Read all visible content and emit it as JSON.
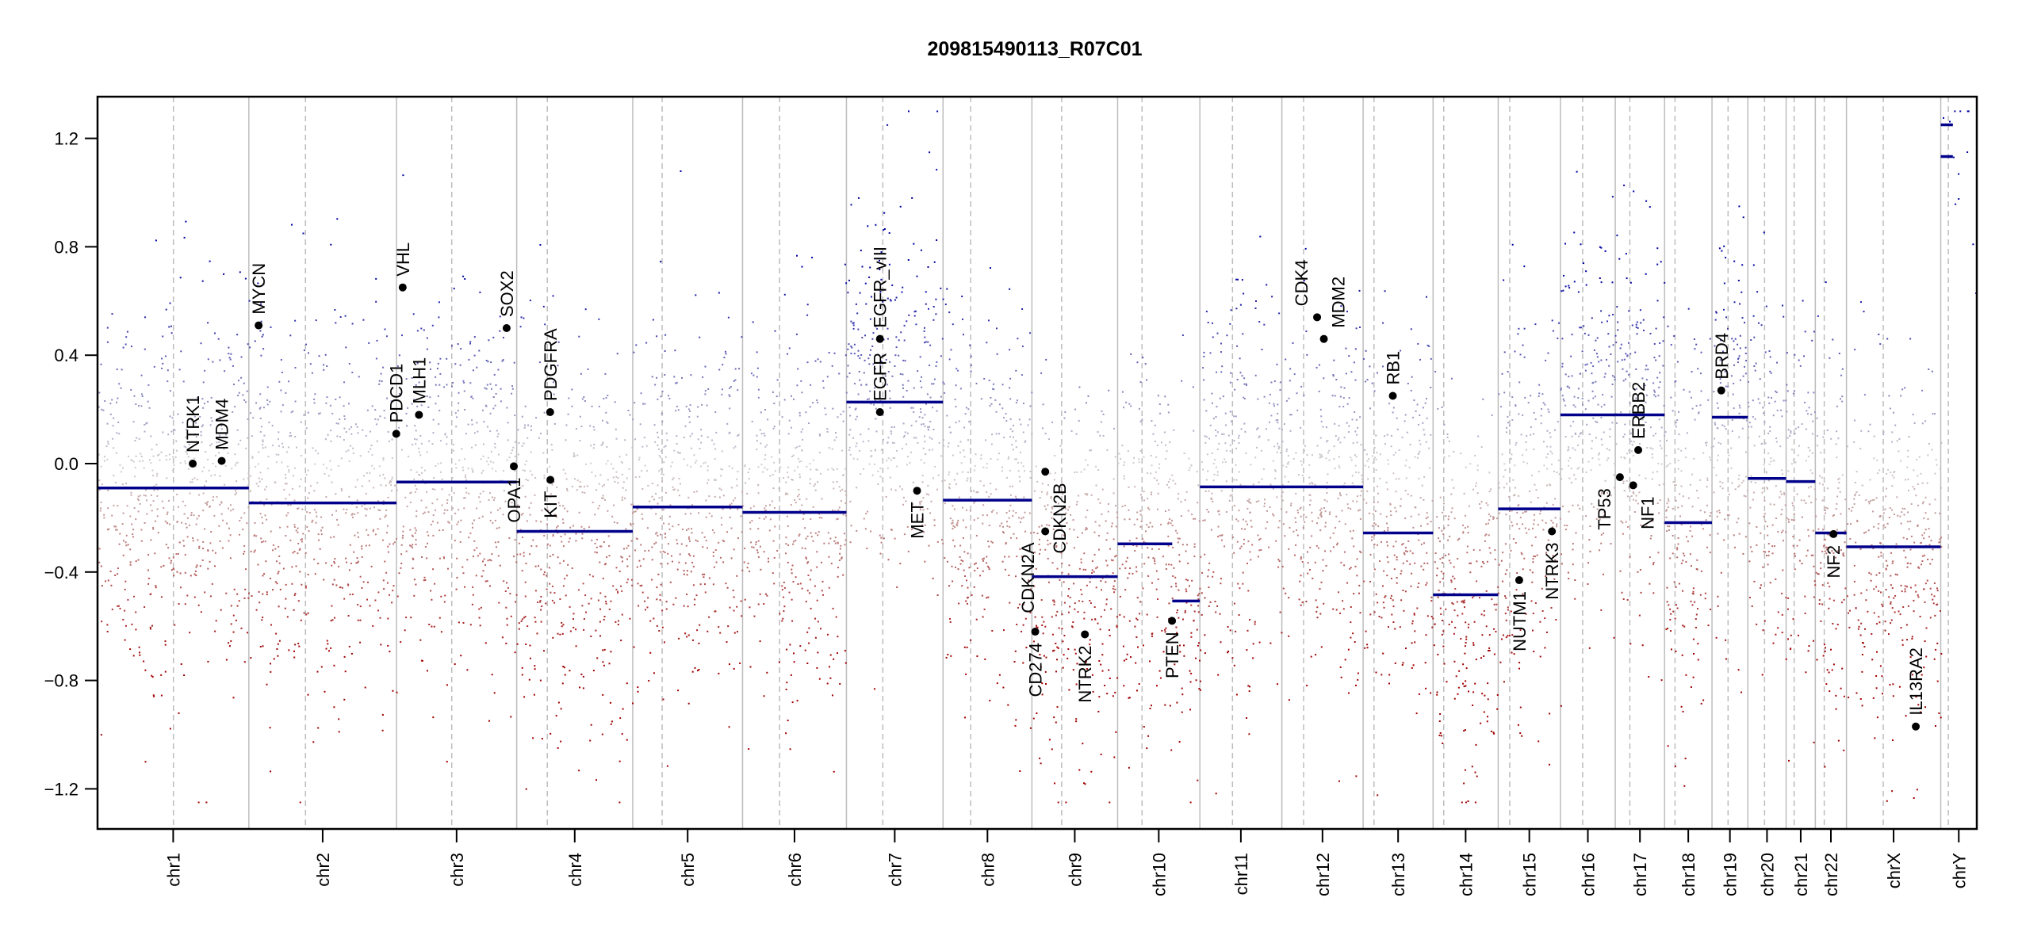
{
  "chart_data": {
    "type": "scatter",
    "title": "209815490113_R07C01",
    "xlabel": "",
    "ylabel": "",
    "ylim": [
      -1.35,
      1.35
    ],
    "yticks": [
      -1.2,
      -0.8,
      -0.4,
      0.0,
      0.4,
      0.8,
      1.2
    ],
    "ytick_labels": [
      "−1.2",
      "−0.8",
      "−0.4",
      "0.0",
      "0.4",
      "0.8",
      "1.2"
    ],
    "floor_value": -1.25,
    "probe_sd": 0.33,
    "colors": {
      "gain": "#0000a0",
      "loss": "#a00000",
      "neutral": "#cfcfcf",
      "segment": "#00008b",
      "gene": "#000000",
      "chrom_line": "#bdbdbd",
      "centromere_line": "#bdbdbd"
    },
    "chromosomes": [
      {
        "name": "chr1",
        "length_mb": 249.25,
        "centromere_mb": 125.0
      },
      {
        "name": "chr2",
        "length_mb": 243.2,
        "centromere_mb": 93.3
      },
      {
        "name": "chr3",
        "length_mb": 198.0,
        "centromere_mb": 91.0
      },
      {
        "name": "chr4",
        "length_mb": 191.15,
        "centromere_mb": 50.4
      },
      {
        "name": "chr5",
        "length_mb": 180.9,
        "centromere_mb": 48.4
      },
      {
        "name": "chr6",
        "length_mb": 171.1,
        "centromere_mb": 61.0
      },
      {
        "name": "chr7",
        "length_mb": 159.1,
        "centromere_mb": 59.9
      },
      {
        "name": "chr8",
        "length_mb": 146.4,
        "centromere_mb": 45.6
      },
      {
        "name": "chr9",
        "length_mb": 141.2,
        "centromere_mb": 49.0
      },
      {
        "name": "chr10",
        "length_mb": 135.5,
        "centromere_mb": 40.2
      },
      {
        "name": "chr11",
        "length_mb": 135.0,
        "centromere_mb": 53.7
      },
      {
        "name": "chr12",
        "length_mb": 133.9,
        "centromere_mb": 35.8
      },
      {
        "name": "chr13",
        "length_mb": 115.2,
        "centromere_mb": 17.9
      },
      {
        "name": "chr14",
        "length_mb": 107.3,
        "centromere_mb": 17.6
      },
      {
        "name": "chr15",
        "length_mb": 102.5,
        "centromere_mb": 19.0
      },
      {
        "name": "chr16",
        "length_mb": 90.35,
        "centromere_mb": 36.6
      },
      {
        "name": "chr17",
        "length_mb": 81.2,
        "centromere_mb": 24.0
      },
      {
        "name": "chr18",
        "length_mb": 78.1,
        "centromere_mb": 17.2
      },
      {
        "name": "chr19",
        "length_mb": 59.1,
        "centromere_mb": 26.5
      },
      {
        "name": "chr20",
        "length_mb": 63.0,
        "centromere_mb": 27.5
      },
      {
        "name": "chr21",
        "length_mb": 48.1,
        "centromere_mb": 13.2
      },
      {
        "name": "chr22",
        "length_mb": 51.3,
        "centromere_mb": 14.7
      },
      {
        "name": "chrX",
        "length_mb": 155.3,
        "centromere_mb": 60.6
      },
      {
        "name": "chrY",
        "length_mb": 59.4,
        "centromere_mb": 12.5
      }
    ],
    "segments": [
      {
        "chr": "chr1",
        "start_mb": 0,
        "end_mb": 249.25,
        "value": -0.09
      },
      {
        "chr": "chr2",
        "start_mb": 0,
        "end_mb": 243.2,
        "value": -0.145
      },
      {
        "chr": "chr3",
        "start_mb": 0,
        "end_mb": 198.0,
        "value": -0.068
      },
      {
        "chr": "chr4",
        "start_mb": 0,
        "end_mb": 191.15,
        "value": -0.25
      },
      {
        "chr": "chr5",
        "start_mb": 0,
        "end_mb": 180.9,
        "value": -0.16
      },
      {
        "chr": "chr6",
        "start_mb": 0,
        "end_mb": 171.1,
        "value": -0.18
      },
      {
        "chr": "chr7",
        "start_mb": 0,
        "end_mb": 159.1,
        "value": 0.227
      },
      {
        "chr": "chr8",
        "start_mb": 0,
        "end_mb": 146.4,
        "value": -0.135
      },
      {
        "chr": "chr9",
        "start_mb": 0,
        "end_mb": 141.2,
        "value": -0.417
      },
      {
        "chr": "chr10",
        "start_mb": 0,
        "end_mb": 90.0,
        "value": -0.296
      },
      {
        "chr": "chr10",
        "start_mb": 90.0,
        "end_mb": 135.5,
        "value": -0.507
      },
      {
        "chr": "chr11",
        "start_mb": 0,
        "end_mb": 135.0,
        "value": -0.086
      },
      {
        "chr": "chr12",
        "start_mb": 0,
        "end_mb": 133.9,
        "value": -0.086
      },
      {
        "chr": "chr13",
        "start_mb": 0,
        "end_mb": 115.2,
        "value": -0.256
      },
      {
        "chr": "chr14",
        "start_mb": 0,
        "end_mb": 107.3,
        "value": -0.484
      },
      {
        "chr": "chr15",
        "start_mb": 0,
        "end_mb": 102.5,
        "value": -0.167
      },
      {
        "chr": "chr16",
        "start_mb": 0,
        "end_mb": 90.35,
        "value": 0.18
      },
      {
        "chr": "chr17",
        "start_mb": 0,
        "end_mb": 81.2,
        "value": 0.18
      },
      {
        "chr": "chr18",
        "start_mb": 0,
        "end_mb": 78.1,
        "value": -0.218
      },
      {
        "chr": "chr19",
        "start_mb": 0,
        "end_mb": 59.1,
        "value": 0.171
      },
      {
        "chr": "chr20",
        "start_mb": 0,
        "end_mb": 63.0,
        "value": -0.055
      },
      {
        "chr": "chr21",
        "start_mb": 0,
        "end_mb": 48.1,
        "value": -0.066
      },
      {
        "chr": "chr22",
        "start_mb": 0,
        "end_mb": 51.3,
        "value": -0.256
      },
      {
        "chr": "chrX",
        "start_mb": 0,
        "end_mb": 155.3,
        "value": -0.307
      },
      {
        "chr": "chrY",
        "start_mb": 0,
        "end_mb": 20.0,
        "value": 1.25
      },
      {
        "chr": "chrY",
        "start_mb": 0,
        "end_mb": 20.0,
        "value": 1.133
      }
    ],
    "genes": [
      {
        "name": "NTRK1",
        "chr": "chr1",
        "pos_mb": 156.8,
        "value": 0.0,
        "label": "above"
      },
      {
        "name": "MDM4",
        "chr": "chr1",
        "pos_mb": 204.5,
        "value": 0.01,
        "label": "above"
      },
      {
        "name": "MYCN",
        "chr": "chr2",
        "pos_mb": 16.1,
        "value": 0.51,
        "label": "above"
      },
      {
        "name": "PDCD1",
        "chr": "chr2",
        "pos_mb": 242.8,
        "value": 0.11,
        "label": "above"
      },
      {
        "name": "VHL",
        "chr": "chr3",
        "pos_mb": 10.2,
        "value": 0.65,
        "label": "above"
      },
      {
        "name": "MLH1",
        "chr": "chr3",
        "pos_mb": 37.0,
        "value": 0.18,
        "label": "above"
      },
      {
        "name": "SOX2",
        "chr": "chr3",
        "pos_mb": 181.4,
        "value": 0.5,
        "label": "above"
      },
      {
        "name": "OPA1",
        "chr": "chr3",
        "pos_mb": 193.3,
        "value": -0.01,
        "label": "below"
      },
      {
        "name": "PDGFRA",
        "chr": "chr4",
        "pos_mb": 55.1,
        "value": 0.19,
        "label": "above"
      },
      {
        "name": "KIT",
        "chr": "chr4",
        "pos_mb": 55.5,
        "value": -0.06,
        "label": "below"
      },
      {
        "name": "EGFR",
        "chr": "chr7",
        "pos_mb": 55.2,
        "value": 0.19,
        "label": "above"
      },
      {
        "name": "EGFR_vIII",
        "chr": "chr7",
        "pos_mb": 55.2,
        "value": 0.46,
        "label": "above"
      },
      {
        "name": "MET",
        "chr": "chr7",
        "pos_mb": 116.3,
        "value": -0.1,
        "label": "below"
      },
      {
        "name": "CD274",
        "chr": "chr9",
        "pos_mb": 5.5,
        "value": -0.62,
        "label": "below"
      },
      {
        "name": "CDKN2A",
        "chr": "chr9",
        "pos_mb": 21.97,
        "value": -0.25,
        "label": "below"
      },
      {
        "name": "CDKN2B",
        "chr": "chr9",
        "pos_mb": 22.0,
        "value": -0.03,
        "label": "below"
      },
      {
        "name": "NTRK2",
        "chr": "chr9",
        "pos_mb": 87.3,
        "value": -0.63,
        "label": "below"
      },
      {
        "name": "PTEN",
        "chr": "chr10",
        "pos_mb": 89.6,
        "value": -0.58,
        "label": "below"
      },
      {
        "name": "CDK4",
        "chr": "chr12",
        "pos_mb": 58.1,
        "value": 0.54,
        "label": "above"
      },
      {
        "name": "MDM2",
        "chr": "chr12",
        "pos_mb": 69.2,
        "value": 0.46,
        "label": "above"
      },
      {
        "name": "RB1",
        "chr": "chr13",
        "pos_mb": 48.9,
        "value": 0.25,
        "label": "above"
      },
      {
        "name": "NUTM1",
        "chr": "chr15",
        "pos_mb": 34.6,
        "value": -0.43,
        "label": "below"
      },
      {
        "name": "NTRK3",
        "chr": "chr15",
        "pos_mb": 88.5,
        "value": -0.25,
        "label": "below"
      },
      {
        "name": "TP53",
        "chr": "chr17",
        "pos_mb": 7.6,
        "value": -0.05,
        "label": "below"
      },
      {
        "name": "NF1",
        "chr": "chr17",
        "pos_mb": 29.5,
        "value": -0.08,
        "label": "below"
      },
      {
        "name": "ERBB2",
        "chr": "chr17",
        "pos_mb": 37.8,
        "value": 0.05,
        "label": "above"
      },
      {
        "name": "BRD4",
        "chr": "chr19",
        "pos_mb": 15.3,
        "value": 0.27,
        "label": "above"
      },
      {
        "name": "NF2",
        "chr": "chr22",
        "pos_mb": 29.9,
        "value": -0.26,
        "label": "below"
      },
      {
        "name": "IL13RA2",
        "chr": "chrX",
        "pos_mb": 114.2,
        "value": -0.97,
        "label": "above"
      }
    ]
  }
}
